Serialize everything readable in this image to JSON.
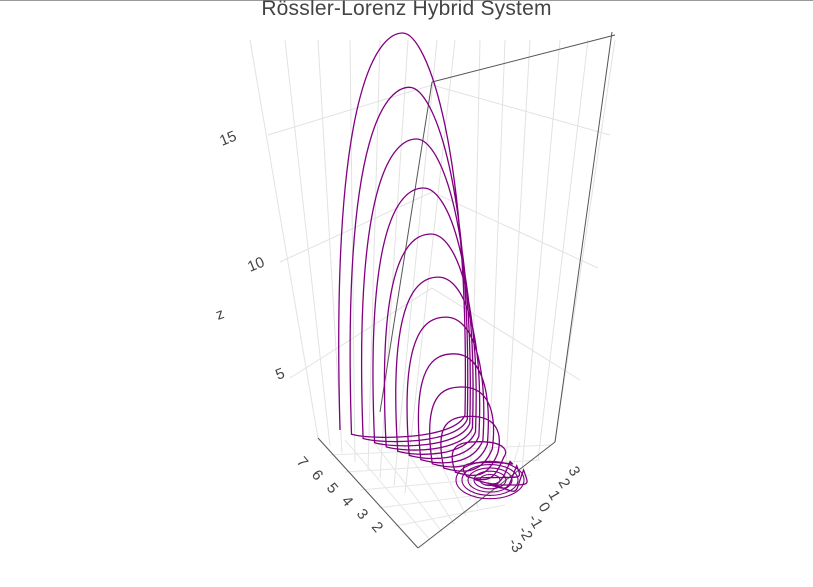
{
  "chart_data": {
    "type": "line",
    "dimensions": 3,
    "title": "Rössler-Lorenz Hybrid System",
    "axes": {
      "x": {
        "label": "",
        "ticks": [
          "-3",
          "-2",
          "-1",
          "0",
          "1",
          "2",
          "3"
        ],
        "range": [
          -3.5,
          3.5
        ]
      },
      "y": {
        "label": "",
        "ticks": [
          "7",
          "6",
          "5",
          "4",
          "3",
          "2"
        ],
        "range": [
          1.5,
          7.5
        ]
      },
      "z": {
        "label": "z",
        "ticks": [
          "5",
          "10",
          "15"
        ],
        "range": [
          0,
          19
        ]
      }
    },
    "grid": true,
    "legend": "none",
    "series": [
      {
        "name": "",
        "color": "#800080",
        "description_points": "spiral trajectory",
        "loops": 14,
        "z_max": 18.8
      }
    ]
  }
}
